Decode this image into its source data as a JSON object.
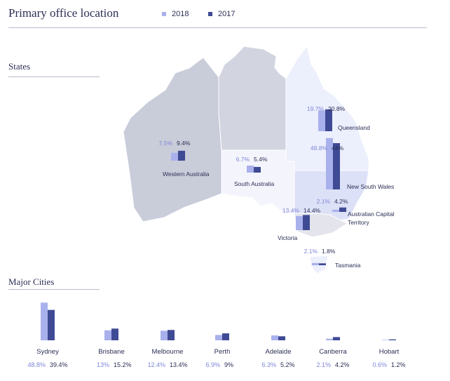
{
  "title": "Primary office location",
  "legend": [
    {
      "name": "2018",
      "color": "#a9b1ec"
    },
    {
      "name": "2017",
      "color": "#3f4a94"
    }
  ],
  "sections": {
    "states": "States",
    "cities": "Major Cities"
  },
  "chart_data": [
    {
      "type": "bar",
      "title": "States",
      "categories": [
        "Western Australia",
        "South Australia",
        "Queensland",
        "New South Wales",
        "Australian Capital Territory",
        "Victoria",
        "Tasmania"
      ],
      "series": [
        {
          "name": "2018",
          "values": [
            7.5,
            6.7,
            19.7,
            48.8,
            2.1,
            13.4,
            2.1
          ]
        },
        {
          "name": "2017",
          "values": [
            9.4,
            5.4,
            20.8,
            44,
            4.2,
            14.4,
            1.8
          ]
        }
      ],
      "value_labels": [
        [
          "7.5%",
          "9.4%"
        ],
        [
          "6.7%",
          "5.4%"
        ],
        [
          "19.7%",
          "20.8%"
        ],
        [
          "48.8%",
          "44%"
        ],
        [
          "2.1%",
          "4.2%"
        ],
        [
          "13.4%",
          "14.4%"
        ],
        [
          "2.1%",
          "1.8%"
        ]
      ]
    },
    {
      "type": "bar",
      "title": "Major Cities",
      "categories": [
        "Sydney",
        "Brisbane",
        "Melbourne",
        "Perth",
        "Adelaide",
        "Canberra",
        "Hobart"
      ],
      "series": [
        {
          "name": "2018",
          "values": [
            48.8,
            13,
            12.4,
            6.9,
            6.3,
            2.1,
            0.6
          ]
        },
        {
          "name": "2017",
          "values": [
            39.4,
            15.2,
            13.4,
            9,
            5.2,
            4.2,
            1.2
          ]
        }
      ],
      "value_labels": [
        [
          "48.8%",
          "39.4%"
        ],
        [
          "13%",
          "15.2%"
        ],
        [
          "12.4%",
          "13.4%"
        ],
        [
          "6.9%",
          "9%"
        ],
        [
          "6.3%",
          "5.2%"
        ],
        [
          "2.1%",
          "4.2%"
        ],
        [
          "0.6%",
          "1.2%"
        ]
      ]
    }
  ]
}
